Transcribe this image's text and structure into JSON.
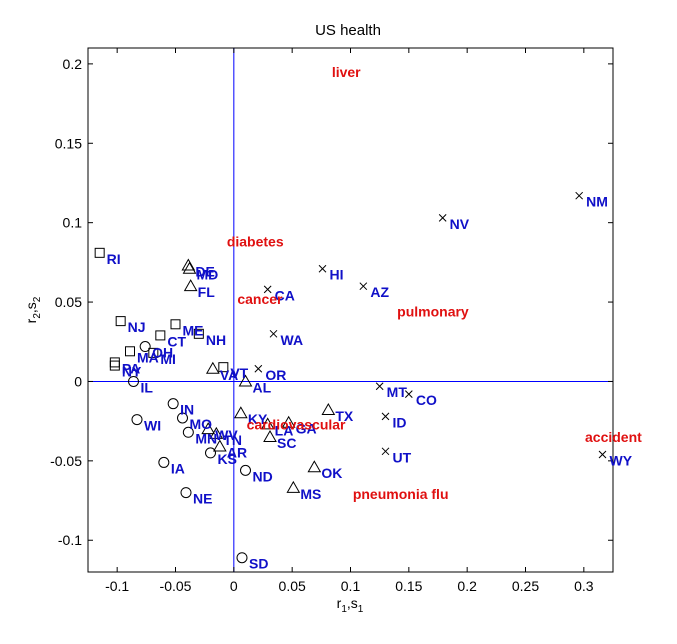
{
  "chart_data": {
    "type": "scatter",
    "title": "US health",
    "xlabel_main": "r",
    "xlabel_sub1": "1",
    "xlabel_sep": ",s",
    "xlabel_sub2": "1",
    "ylabel_main": "r",
    "ylabel_sub1": "2",
    "ylabel_sep": ",s",
    "ylabel_sub2": "2",
    "xlim": [
      -0.125,
      0.325
    ],
    "ylim": [
      -0.12,
      0.21
    ],
    "xticks": [
      {
        "v": -0.1,
        "label": "-0.1"
      },
      {
        "v": -0.05,
        "label": "-0.05"
      },
      {
        "v": 0,
        "label": "0"
      },
      {
        "v": 0.05,
        "label": "0.05"
      },
      {
        "v": 0.1,
        "label": "0.1"
      },
      {
        "v": 0.15,
        "label": "0.15"
      },
      {
        "v": 0.2,
        "label": "0.2"
      },
      {
        "v": 0.25,
        "label": "0.25"
      },
      {
        "v": 0.3,
        "label": "0.3"
      }
    ],
    "yticks": [
      {
        "v": -0.1,
        "label": "-0.1"
      },
      {
        "v": -0.05,
        "label": "-0.05"
      },
      {
        "v": 0,
        "label": "0"
      },
      {
        "v": 0.05,
        "label": "0.05"
      },
      {
        "v": 0.1,
        "label": "0.1"
      },
      {
        "v": 0.15,
        "label": "0.15"
      },
      {
        "v": 0.2,
        "label": "0.2"
      }
    ],
    "reference_lines": {
      "x": 0,
      "y": 0,
      "color": "#0000ff"
    },
    "colors": {
      "states": "#1010c8",
      "causes": "#e01010",
      "markers": "#000000"
    },
    "states": [
      {
        "label": "RI",
        "x": -0.115,
        "y": 0.081,
        "marker": "square"
      },
      {
        "label": "NJ",
        "x": -0.097,
        "y": 0.038,
        "marker": "square"
      },
      {
        "label": "PA",
        "x": -0.102,
        "y": 0.012,
        "marker": "square"
      },
      {
        "label": "NY",
        "x": -0.102,
        "y": 0.01,
        "marker": "square"
      },
      {
        "label": "MA",
        "x": -0.089,
        "y": 0.019,
        "marker": "square"
      },
      {
        "label": "OH",
        "x": -0.076,
        "y": 0.022,
        "marker": "circle"
      },
      {
        "label": "CT",
        "x": -0.063,
        "y": 0.029,
        "marker": "square"
      },
      {
        "label": "MI",
        "x": -0.069,
        "y": 0.018,
        "marker": "square"
      },
      {
        "label": "ME",
        "x": -0.05,
        "y": 0.036,
        "marker": "square"
      },
      {
        "label": "NH",
        "x": -0.03,
        "y": 0.03,
        "marker": "square"
      },
      {
        "label": "DE",
        "x": -0.039,
        "y": 0.073,
        "marker": "triangle"
      },
      {
        "label": "MD",
        "x": -0.038,
        "y": 0.071,
        "marker": "triangle"
      },
      {
        "label": "FL",
        "x": -0.037,
        "y": 0.06,
        "marker": "triangle"
      },
      {
        "label": "IL",
        "x": -0.086,
        "y": 0.0,
        "marker": "circle"
      },
      {
        "label": "VA",
        "x": -0.018,
        "y": 0.008,
        "marker": "triangle"
      },
      {
        "label": "VT",
        "x": -0.009,
        "y": 0.009,
        "marker": "square"
      },
      {
        "label": "AL",
        "x": 0.01,
        "y": 0.0,
        "marker": "triangle"
      },
      {
        "label": "OR",
        "x": 0.021,
        "y": 0.008,
        "marker": "cross"
      },
      {
        "label": "WA",
        "x": 0.034,
        "y": 0.03,
        "marker": "cross"
      },
      {
        "label": "CA",
        "x": 0.029,
        "y": 0.058,
        "marker": "cross"
      },
      {
        "label": "HI",
        "x": 0.076,
        "y": 0.071,
        "marker": "cross"
      },
      {
        "label": "AZ",
        "x": 0.111,
        "y": 0.06,
        "marker": "cross"
      },
      {
        "label": "NV",
        "x": 0.179,
        "y": 0.103,
        "marker": "cross"
      },
      {
        "label": "NM",
        "x": 0.296,
        "y": 0.117,
        "marker": "cross"
      },
      {
        "label": "WI",
        "x": -0.083,
        "y": -0.024,
        "marker": "circle"
      },
      {
        "label": "IN",
        "x": -0.052,
        "y": -0.014,
        "marker": "circle"
      },
      {
        "label": "MO",
        "x": -0.044,
        "y": -0.023,
        "marker": "circle"
      },
      {
        "label": "MN",
        "x": -0.039,
        "y": -0.032,
        "marker": "circle"
      },
      {
        "label": "WV",
        "x": -0.022,
        "y": -0.03,
        "marker": "triangle"
      },
      {
        "label": "TN",
        "x": -0.015,
        "y": -0.033,
        "marker": "triangle"
      },
      {
        "label": "KY",
        "x": 0.006,
        "y": -0.02,
        "marker": "triangle"
      },
      {
        "label": "LA",
        "x": 0.029,
        "y": -0.027,
        "marker": "triangle"
      },
      {
        "label": "GA",
        "x": 0.047,
        "y": -0.026,
        "marker": "triangle"
      },
      {
        "label": "SC",
        "x": 0.031,
        "y": -0.035,
        "marker": "triangle"
      },
      {
        "label": "TX",
        "x": 0.081,
        "y": -0.018,
        "marker": "triangle"
      },
      {
        "label": "IA",
        "x": -0.06,
        "y": -0.051,
        "marker": "circle"
      },
      {
        "label": "KS",
        "x": -0.02,
        "y": -0.045,
        "marker": "circle"
      },
      {
        "label": "AR",
        "x": -0.012,
        "y": -0.041,
        "marker": "triangle"
      },
      {
        "label": "ND",
        "x": 0.01,
        "y": -0.056,
        "marker": "circle"
      },
      {
        "label": "NE",
        "x": -0.041,
        "y": -0.07,
        "marker": "circle"
      },
      {
        "label": "OK",
        "x": 0.069,
        "y": -0.054,
        "marker": "triangle"
      },
      {
        "label": "MS",
        "x": 0.051,
        "y": -0.067,
        "marker": "triangle"
      },
      {
        "label": "SD",
        "x": 0.007,
        "y": -0.111,
        "marker": "circle"
      },
      {
        "label": "MT",
        "x": 0.125,
        "y": -0.003,
        "marker": "cross"
      },
      {
        "label": "CO",
        "x": 0.15,
        "y": -0.008,
        "marker": "cross"
      },
      {
        "label": "ID",
        "x": 0.13,
        "y": -0.022,
        "marker": "cross"
      },
      {
        "label": "UT",
        "x": 0.13,
        "y": -0.044,
        "marker": "cross"
      },
      {
        "label": "WY",
        "x": 0.316,
        "y": -0.046,
        "marker": "cross"
      }
    ],
    "causes": [
      {
        "label": "liver",
        "x": 0.084,
        "y": 0.195
      },
      {
        "label": "diabetes",
        "x": -0.006,
        "y": 0.088
      },
      {
        "label": "cancer",
        "x": 0.003,
        "y": 0.052
      },
      {
        "label": "pulmonary",
        "x": 0.14,
        "y": 0.044
      },
      {
        "label": "cardiovascular",
        "x": 0.011,
        "y": -0.027
      },
      {
        "label": "pneumonia flu",
        "x": 0.102,
        "y": -0.071
      },
      {
        "label": "accident",
        "x": 0.301,
        "y": -0.035
      }
    ]
  }
}
